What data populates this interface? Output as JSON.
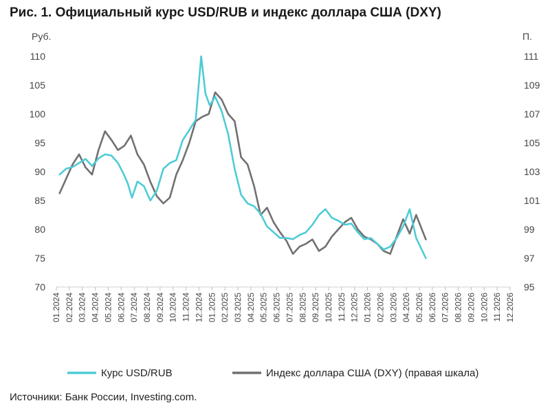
{
  "title": "Рис. 1. Официальный курс USD/RUB и индекс доллара США (DXY)",
  "source": "Источники: Банк России, Investing.com.",
  "chart_data": {
    "type": "line",
    "left_unit": "Руб.",
    "right_unit": "П.",
    "left_ylim": [
      70,
      110
    ],
    "left_yticks": [
      "70",
      "75",
      "80",
      "85",
      "90",
      "95",
      "100",
      "105",
      "110"
    ],
    "right_ylim": [
      95,
      111
    ],
    "right_yticks": [
      "95",
      "97",
      "99",
      "101",
      "103",
      "105",
      "107",
      "109",
      "111"
    ],
    "x_ticks": [
      "01.2024",
      "02.2024",
      "03.2024",
      "04.2024",
      "05.2024",
      "06.2024",
      "07.2024",
      "08.2024",
      "09.2024",
      "10.2024",
      "11.2024",
      "12.2024",
      "01.2025",
      "02.2025",
      "03.2025",
      "04.2025",
      "05.2025",
      "06.2025",
      "07.2025",
      "08.2025",
      "09.2025",
      "10.2025",
      "11.2025",
      "12.2025",
      "01.2026",
      "02.2026",
      "03.2026",
      "04.2026",
      "05.2026",
      "06.2026",
      "07.2026",
      "08.2026",
      "09.2026",
      "10.2026",
      "11.2026",
      "12.2026"
    ],
    "grid": false,
    "legend_position": "bottom",
    "series": [
      {
        "name": "Курс USD/RUB",
        "axis": "left",
        "color": "#4ecbd6",
        "x": [
          "01.2024",
          "01.2024",
          "02.2024",
          "02.2024",
          "03.2024",
          "03.2024",
          "04.2024",
          "04.2024",
          "05.2024",
          "05.2024",
          "06.2024",
          "06.2024",
          "06.2024",
          "07.2024",
          "07.2024",
          "08.2024",
          "08.2024",
          "09.2024",
          "09.2024",
          "10.2024",
          "10.2024",
          "11.2024",
          "11.2024",
          "12.2024",
          "12.2024",
          "12.2024",
          "01.2025",
          "01.2025",
          "02.2025",
          "02.2025",
          "03.2025",
          "03.2025",
          "04.2025",
          "04.2025",
          "05.2025",
          "05.2025",
          "06.2025",
          "06.2025",
          "07.2025",
          "07.2025",
          "08.2025",
          "08.2025",
          "09.2025",
          "09.2025",
          "10.2025",
          "10.2025",
          "11.2025",
          "11.2025",
          "12.2025",
          "12.2025",
          "01.2026",
          "01.2026",
          "02.2026",
          "02.2026",
          "03.2026",
          "03.2026",
          "04.2026",
          "04.2026",
          "05.2026"
        ],
        "values": [
          89.5,
          90.5,
          90.8,
          91.5,
          92.2,
          91.0,
          92.3,
          93.0,
          92.8,
          91.5,
          89.7,
          88.0,
          85.5,
          88.3,
          87.5,
          85.0,
          86.7,
          90.5,
          91.5,
          92.0,
          95.5,
          97.2,
          99.0,
          110.0,
          103.5,
          101.5,
          103.0,
          100.5,
          96.5,
          90.5,
          86.0,
          84.5,
          84.0,
          82.7,
          80.5,
          79.5,
          78.5,
          78.5,
          78.3,
          79.0,
          79.5,
          80.8,
          82.5,
          83.5,
          82.0,
          81.5,
          80.8,
          81.0,
          79.5,
          78.3,
          78.5,
          77.5,
          76.5,
          77.0,
          78.5,
          80.5,
          83.5,
          78.5,
          75.0
        ]
      },
      {
        "name": "Индекс доллара США (DXY) (правая шкала)",
        "axis": "right",
        "color": "#707070",
        "x": [
          "01.2024",
          "01.2024",
          "02.2024",
          "02.2024",
          "03.2024",
          "03.2024",
          "04.2024",
          "04.2024",
          "05.2024",
          "05.2024",
          "06.2024",
          "06.2024",
          "07.2024",
          "07.2024",
          "08.2024",
          "08.2024",
          "09.2024",
          "09.2024",
          "10.2024",
          "10.2024",
          "11.2024",
          "11.2024",
          "12.2024",
          "12.2024",
          "01.2025",
          "01.2025",
          "02.2025",
          "02.2025",
          "03.2025",
          "03.2025",
          "04.2025",
          "04.2025",
          "05.2025",
          "05.2025",
          "06.2025",
          "06.2025",
          "07.2025",
          "07.2025",
          "08.2025",
          "08.2025",
          "09.2025",
          "09.2025",
          "10.2025",
          "10.2025",
          "11.2025",
          "11.2025",
          "12.2025",
          "12.2025",
          "01.2026",
          "01.2026",
          "02.2026",
          "02.2026",
          "03.2026",
          "03.2026",
          "04.2026",
          "04.2026",
          "05.2026"
        ],
        "values": [
          101.5,
          102.5,
          103.5,
          104.2,
          103.3,
          102.8,
          104.5,
          105.8,
          105.2,
          104.5,
          104.8,
          105.5,
          104.2,
          103.5,
          102.3,
          101.3,
          100.8,
          101.2,
          102.8,
          103.8,
          105.0,
          106.5,
          106.8,
          107.0,
          108.5,
          108.0,
          107.0,
          106.5,
          104.0,
          103.5,
          102.0,
          100.0,
          100.5,
          99.5,
          98.8,
          98.2,
          97.3,
          97.8,
          98.0,
          98.3,
          97.5,
          97.8,
          98.5,
          99.0,
          99.5,
          99.8,
          99.0,
          98.5,
          98.3,
          98.0,
          97.5,
          97.3,
          98.5,
          99.7,
          98.7,
          100.0,
          98.3
        ]
      }
    ]
  }
}
